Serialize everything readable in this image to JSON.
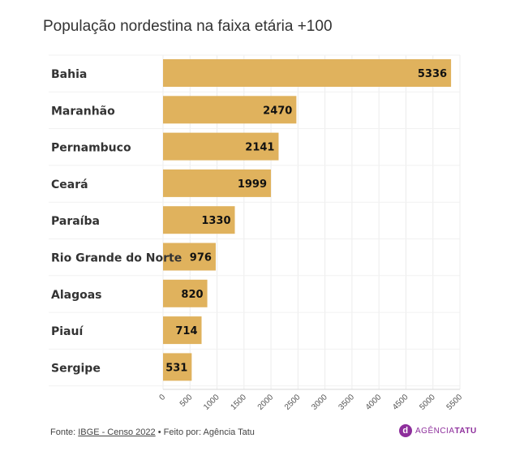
{
  "chart_data": {
    "type": "bar",
    "orientation": "horizontal",
    "title": "População nordestina na faixa etária +100",
    "categories": [
      "Bahia",
      "Maranhão",
      "Pernambuco",
      "Ceará",
      "Paraíba",
      "Rio Grande do Norte",
      "Alagoas",
      "Piauí",
      "Sergipe"
    ],
    "values": [
      5336,
      2470,
      2141,
      1999,
      1330,
      976,
      820,
      714,
      531
    ],
    "xlim": [
      0,
      5500
    ],
    "xticks": [
      0,
      500,
      1000,
      1500,
      2000,
      2500,
      3000,
      3500,
      4000,
      4500,
      5000,
      5500
    ],
    "bar_color": "#e0b25d",
    "grid": true
  },
  "footer": {
    "prefix": "Fonte: ",
    "source_link": "IBGE - Censo 2022",
    "suffix": " • Feito por: Agência Tatu"
  },
  "logo": {
    "glyph": "d",
    "part1": "AGÊNCIA",
    "part2": "TATU",
    "color": "#8e2f9c"
  }
}
